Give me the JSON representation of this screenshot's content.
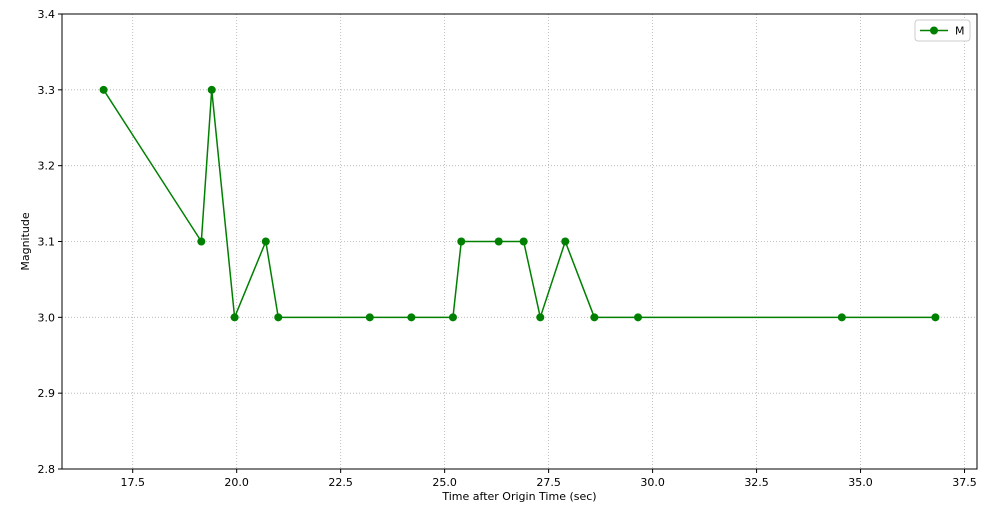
{
  "chart_data": {
    "type": "line",
    "title": "",
    "xlabel": "Time after Origin Time (sec)",
    "ylabel": "Magnitude",
    "xlim": [
      15.8,
      37.8
    ],
    "ylim": [
      2.8,
      3.4
    ],
    "xticks": [
      17.5,
      20.0,
      22.5,
      25.0,
      27.5,
      30.0,
      32.5,
      35.0,
      37.5
    ],
    "xtick_labels": [
      "17.5",
      "20.0",
      "22.5",
      "25.0",
      "27.5",
      "30.0",
      "32.5",
      "35.0",
      "37.5"
    ],
    "yticks": [
      2.8,
      2.9,
      3.0,
      3.1,
      3.2,
      3.3,
      3.4
    ],
    "ytick_labels": [
      "2.8",
      "2.9",
      "3.0",
      "3.1",
      "3.2",
      "3.3",
      "3.4"
    ],
    "grid": true,
    "legend_position": "top-right",
    "series": [
      {
        "name": "M",
        "color": "#008000",
        "marker": "circle",
        "x": [
          16.8,
          19.15,
          19.4,
          19.95,
          20.7,
          21.0,
          23.2,
          24.2,
          25.2,
          25.4,
          26.3,
          26.9,
          27.3,
          27.9,
          28.6,
          29.65,
          34.55,
          36.8
        ],
        "y": [
          3.3,
          3.1,
          3.3,
          3.0,
          3.1,
          3.0,
          3.0,
          3.0,
          3.0,
          3.1,
          3.1,
          3.1,
          3.0,
          3.1,
          3.0,
          3.0,
          3.0,
          3.0
        ]
      }
    ]
  }
}
